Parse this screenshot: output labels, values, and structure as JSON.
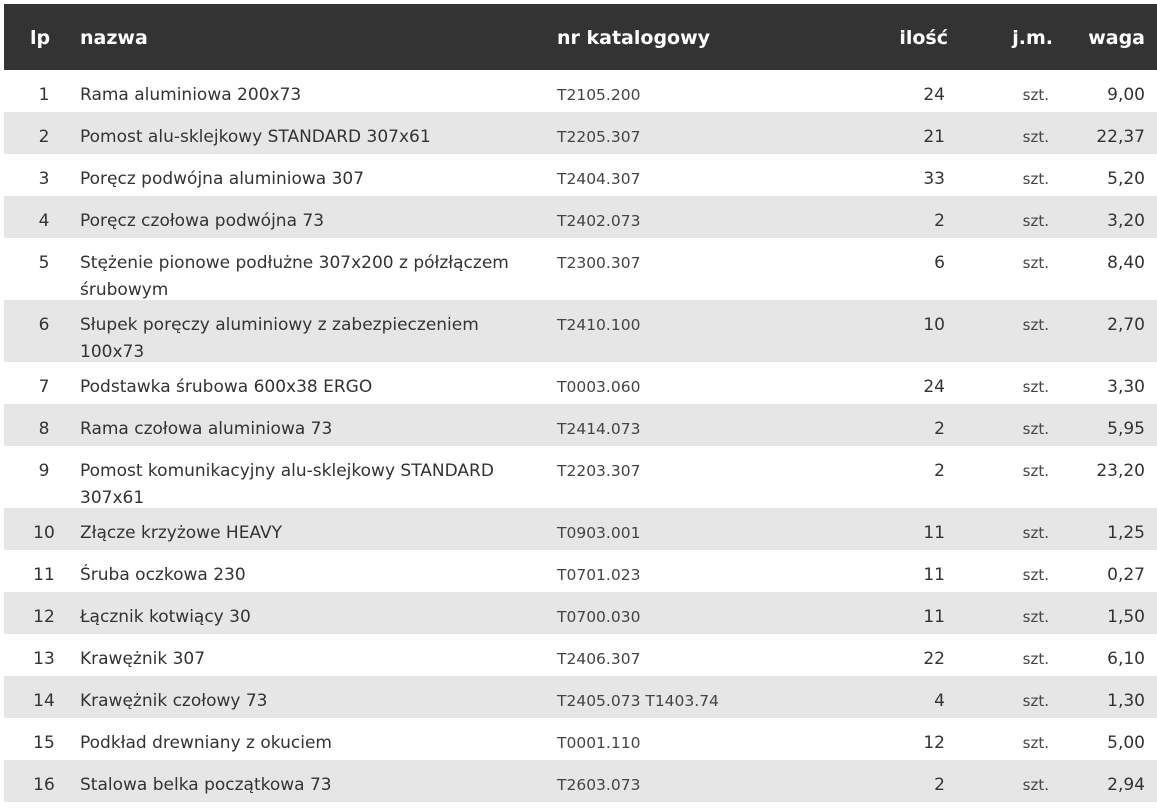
{
  "table": {
    "headers": {
      "lp": "lp",
      "name": "nazwa",
      "catalog": "nr katalogowy",
      "qty": "ilość",
      "unit": "j.m.",
      "weight": "waga"
    },
    "rows": [
      {
        "lp": "1",
        "name": "Rama aluminiowa 200x73",
        "catalog": "T2105.200",
        "qty": "24",
        "unit": "szt.",
        "weight": "9,00"
      },
      {
        "lp": "2",
        "name": "Pomost alu-sklejkowy STANDARD 307x61",
        "catalog": "T2205.307",
        "qty": "21",
        "unit": "szt.",
        "weight": "22,37"
      },
      {
        "lp": "3",
        "name": "Poręcz podwójna aluminiowa 307",
        "catalog": "T2404.307",
        "qty": "33",
        "unit": "szt.",
        "weight": "5,20"
      },
      {
        "lp": "4",
        "name": "Poręcz czołowa podwójna 73",
        "catalog": "T2402.073",
        "qty": "2",
        "unit": "szt.",
        "weight": "3,20"
      },
      {
        "lp": "5",
        "name": "Stężenie pionowe podłużne 307x200 z półzłączem śrubowym",
        "catalog": "T2300.307",
        "qty": "6",
        "unit": "szt.",
        "weight": "8,40"
      },
      {
        "lp": "6",
        "name": "Słupek poręczy aluminiowy z zabezpieczeniem 100x73",
        "catalog": "T2410.100",
        "qty": "10",
        "unit": "szt.",
        "weight": "2,70"
      },
      {
        "lp": "7",
        "name": "Podstawka śrubowa 600x38 ERGO",
        "catalog": "T0003.060",
        "qty": "24",
        "unit": "szt.",
        "weight": "3,30"
      },
      {
        "lp": "8",
        "name": "Rama czołowa aluminiowa 73",
        "catalog": "T2414.073",
        "qty": "2",
        "unit": "szt.",
        "weight": "5,95"
      },
      {
        "lp": "9",
        "name": "Pomost komunikacyjny alu-sklejkowy STANDARD 307x61",
        "catalog": "T2203.307",
        "qty": "2",
        "unit": "szt.",
        "weight": "23,20"
      },
      {
        "lp": "10",
        "name": "Złącze krzyżowe HEAVY",
        "catalog": "T0903.001",
        "qty": "11",
        "unit": "szt.",
        "weight": "1,25"
      },
      {
        "lp": "11",
        "name": "Śruba oczkowa 230",
        "catalog": "T0701.023",
        "qty": "11",
        "unit": "szt.",
        "weight": "0,27"
      },
      {
        "lp": "12",
        "name": "Łącznik kotwiący 30",
        "catalog": "T0700.030",
        "qty": "11",
        "unit": "szt.",
        "weight": "1,50"
      },
      {
        "lp": "13",
        "name": "Krawężnik 307",
        "catalog": "T2406.307",
        "qty": "22",
        "unit": "szt.",
        "weight": "6,10"
      },
      {
        "lp": "14",
        "name": "Krawężnik czołowy 73",
        "catalog": "T2405.073  T1403.74",
        "qty": "4",
        "unit": "szt.",
        "weight": "1,30"
      },
      {
        "lp": "15",
        "name": "Podkład drewniany z okuciem",
        "catalog": "T0001.110",
        "qty": "12",
        "unit": "szt.",
        "weight": "5,00"
      },
      {
        "lp": "16",
        "name": "Stalowa belka początkowa 73",
        "catalog": "T2603.073",
        "qty": "2",
        "unit": "szt.",
        "weight": "2,94"
      }
    ]
  },
  "colors": {
    "header_bg": "#333333",
    "stripe": "#e6e6e6"
  }
}
